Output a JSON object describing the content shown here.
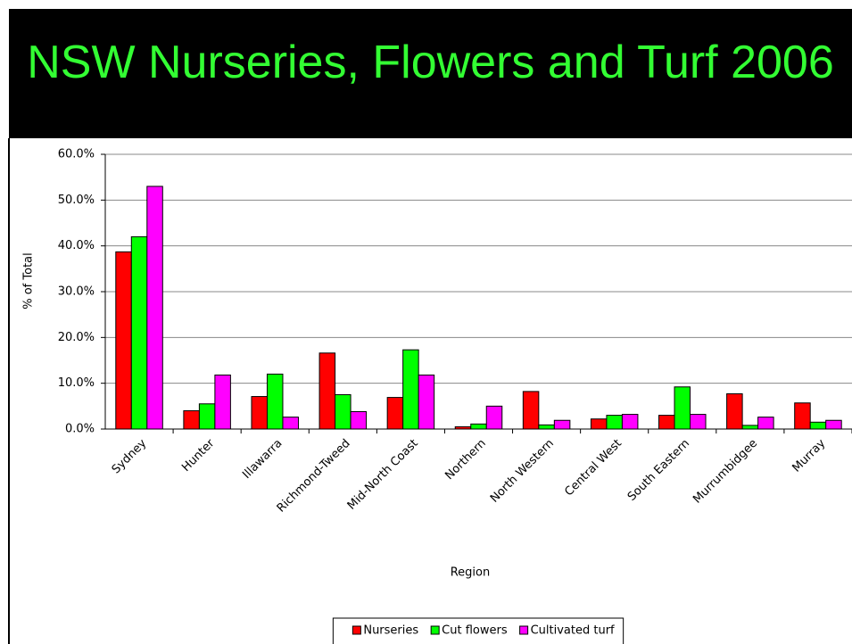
{
  "chart_data": {
    "type": "bar",
    "title": "NSW Nurseries, Flowers and Turf 2006",
    "x_label": "Region",
    "y_label": "% of Total",
    "categories": [
      "Sydney",
      "Hunter",
      "Illawarra",
      "Richmond-Tweed",
      "Mid-North Coast",
      "Northern",
      "North Western",
      "Central West",
      "South Eastern",
      "Murrumbidgee",
      "Murray"
    ],
    "series": [
      {
        "name": "Nurseries",
        "color": "#ff0000",
        "values": [
          38.7,
          4,
          7.1,
          16.6,
          6.9,
          0.5,
          8.2,
          2.2,
          3,
          7.7,
          5.7
        ]
      },
      {
        "name": "Cut flowers",
        "color": "#00ff00",
        "values": [
          42,
          5.5,
          12,
          7.5,
          17.3,
          1.1,
          0.9,
          3,
          9.2,
          0.8,
          1.5
        ]
      },
      {
        "name": "Cultivated turf",
        "color": "#ff00ff",
        "values": [
          53,
          11.8,
          2.6,
          3.8,
          11.8,
          5,
          1.9,
          3.2,
          3.2,
          2.6,
          1.9
        ]
      }
    ],
    "ylim": [
      0,
      60
    ],
    "yticks": [
      {
        "value": 0,
        "label": "0.0%"
      },
      {
        "value": 10,
        "label": "10.0%"
      },
      {
        "value": 20,
        "label": "20.0%"
      },
      {
        "value": 30,
        "label": "30.0%"
      },
      {
        "value": 40,
        "label": "40.0%"
      },
      {
        "value": 50,
        "label": "50.0%"
      },
      {
        "value": 60,
        "label": "60.0%"
      }
    ],
    "grid": true,
    "legend": "bottom"
  }
}
